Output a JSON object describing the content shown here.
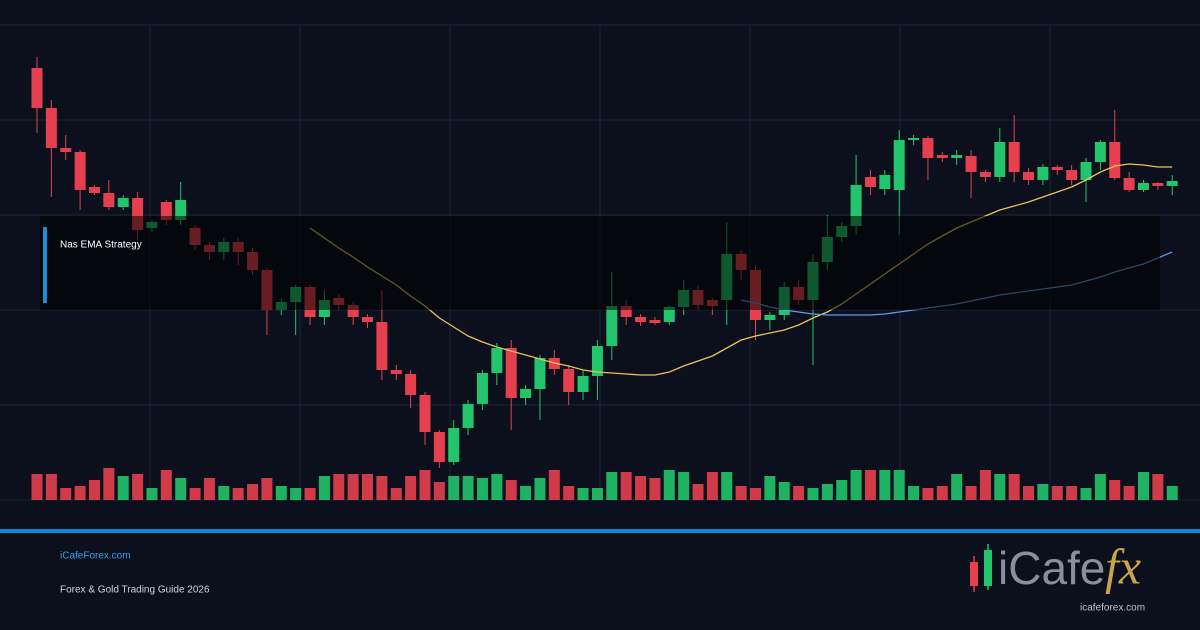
{
  "chart_data": {
    "type": "candlestick",
    "open": [
      432,
      392,
      352,
      348,
      313,
      307,
      293,
      302,
      272,
      298,
      280,
      272,
      255,
      248,
      258,
      248,
      230,
      190,
      198,
      213,
      183,
      202,
      195,
      183,
      178,
      130,
      126,
      105,
      68,
      38,
      72,
      96,
      127,
      152,
      102,
      111,
      142,
      131,
      108,
      124,
      154,
      194,
      183,
      180,
      178,
      193,
      210,
      200,
      200,
      246,
      230,
      180,
      185,
      213,
      200,
      238,
      263,
      274,
      323,
      311,
      310,
      360,
      362,
      345,
      342,
      344,
      328,
      323,
      358,
      328,
      320,
      333,
      330,
      320,
      338,
      358,
      322,
      310,
      317,
      314
    ],
    "high": [
      443,
      400,
      365,
      350,
      315,
      320,
      305,
      308,
      280,
      300,
      318,
      275,
      258,
      262,
      262,
      252,
      232,
      202,
      215,
      215,
      210,
      206,
      198,
      186,
      210,
      135,
      130,
      108,
      70,
      80,
      100,
      130,
      157,
      160,
      115,
      145,
      150,
      135,
      130,
      160,
      228,
      200,
      186,
      183,
      195,
      220,
      215,
      202,
      278,
      250,
      235,
      188,
      218,
      220,
      245,
      285,
      278,
      345,
      330,
      330,
      370,
      365,
      364,
      348,
      350,
      350,
      330,
      372,
      385,
      332,
      336,
      335,
      335,
      342,
      360,
      390,
      328,
      320,
      318,
      325
    ],
    "low": [
      367,
      303,
      340,
      290,
      305,
      290,
      290,
      260,
      268,
      275,
      275,
      250,
      240,
      240,
      235,
      225,
      165,
      185,
      165,
      175,
      175,
      190,
      175,
      172,
      120,
      120,
      92,
      55,
      32,
      35,
      65,
      90,
      115,
      70,
      95,
      80,
      125,
      95,
      100,
      100,
      140,
      175,
      174,
      175,
      175,
      185,
      190,
      185,
      175,
      220,
      160,
      170,
      180,
      195,
      135,
      230,
      258,
      265,
      305,
      305,
      265,
      355,
      320,
      338,
      335,
      302,
      318,
      318,
      318,
      315,
      315,
      325,
      315,
      298,
      330,
      320,
      308,
      308,
      310,
      305
    ],
    "close": [
      392,
      352,
      348,
      310,
      307,
      293,
      302,
      270,
      278,
      280,
      300,
      255,
      248,
      258,
      248,
      230,
      190,
      198,
      213,
      183,
      200,
      195,
      183,
      178,
      130,
      126,
      105,
      68,
      38,
      72,
      96,
      127,
      152,
      102,
      111,
      142,
      131,
      108,
      124,
      154,
      194,
      183,
      178,
      177,
      193,
      210,
      195,
      194,
      246,
      230,
      180,
      185,
      213,
      200,
      238,
      263,
      274,
      315,
      313,
      325,
      360,
      362,
      342,
      342,
      345,
      328,
      323,
      358,
      328,
      320,
      333,
      330,
      320,
      338,
      358,
      322,
      310,
      317,
      314,
      319
    ],
    "volume": [
      26,
      26,
      12,
      14,
      20,
      32,
      24,
      26,
      12,
      30,
      22,
      12,
      22,
      14,
      12,
      16,
      22,
      14,
      12,
      12,
      24,
      26,
      26,
      26,
      24,
      12,
      24,
      30,
      18,
      24,
      24,
      22,
      26,
      20,
      14,
      22,
      30,
      14,
      12,
      12,
      28,
      28,
      24,
      22,
      30,
      28,
      16,
      28,
      28,
      14,
      12,
      24,
      18,
      14,
      12,
      16,
      20,
      30,
      30,
      30,
      30,
      14,
      12,
      14,
      26,
      14,
      30,
      26,
      26,
      14,
      16,
      14,
      14,
      12,
      26,
      20,
      14,
      28,
      26,
      14
    ],
    "up_color": "#22c46c",
    "down_color": "#e6404f",
    "series": [
      {
        "color": "#e8c25a",
        "values": [
          null,
          null,
          null,
          null,
          null,
          null,
          null,
          null,
          null,
          null,
          null,
          null,
          null,
          null,
          null,
          null,
          null,
          null,
          null,
          272,
          262,
          252,
          243,
          233,
          224,
          215,
          204,
          194,
          182,
          173,
          164,
          158,
          153,
          149,
          145,
          141,
          137,
          134,
          130,
          128,
          127,
          126,
          125,
          125,
          128,
          134,
          139,
          144,
          152,
          160,
          164,
          167,
          170,
          175,
          182,
          188,
          196,
          206,
          216,
          226,
          236,
          246,
          256,
          264,
          272,
          278,
          284,
          290,
          294,
          298,
          303,
          308,
          313,
          320,
          328,
          334,
          336,
          335,
          333,
          333
        ]
      },
      {
        "color": "#5b9be8",
        "values": [
          null,
          null,
          null,
          null,
          null,
          null,
          null,
          null,
          null,
          null,
          null,
          null,
          null,
          null,
          null,
          null,
          null,
          null,
          null,
          null,
          null,
          null,
          null,
          null,
          null,
          null,
          null,
          null,
          null,
          null,
          null,
          null,
          null,
          null,
          null,
          null,
          null,
          null,
          null,
          null,
          null,
          null,
          null,
          null,
          null,
          null,
          null,
          null,
          null,
          200,
          197,
          193,
          190,
          188,
          186,
          185,
          185,
          185,
          185,
          186,
          188,
          190,
          192,
          194,
          196,
          199,
          202,
          205,
          207,
          209,
          211,
          213,
          215,
          219,
          223,
          228,
          232,
          236,
          242,
          248
        ]
      }
    ],
    "ylim": [
      0,
      475
    ],
    "yticks": [
      0,
      95,
      190,
      285,
      380,
      475
    ],
    "volume_lim": [
      0,
      40
    ],
    "grid": true
  },
  "overlay": {
    "label": "Nas EMA Strategy"
  },
  "footer": {
    "site": "iCafeForex.com",
    "subtitle": "Forex & Gold Trading Guide 2026"
  },
  "logo": {
    "word": "iCafe",
    "mark": "fx",
    "url": "icafeforex.com"
  }
}
